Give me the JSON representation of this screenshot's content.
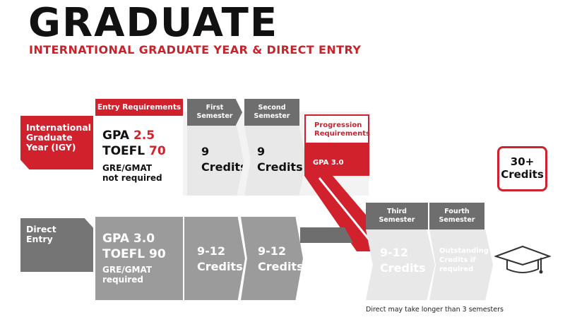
{
  "header": {
    "title": "GRADUATE",
    "subtitle": "INTERNATIONAL GRADUATE YEAR & DIRECT ENTRY"
  },
  "igy": {
    "label_lines": [
      "International",
      "Graduate",
      "Year (IGY)"
    ],
    "entry_requirements": {
      "heading": "Entry Requirements",
      "gpa_label": "GPA",
      "gpa_value": "2.5",
      "toefl_label": "TOEFL",
      "toefl_value": "70",
      "note_lines": [
        "GRE/GMAT",
        "not required"
      ]
    },
    "first_semester": {
      "heading_lines": [
        "First",
        "Semester"
      ],
      "credits_value": "9",
      "credits_label": "Credits"
    },
    "second_semester": {
      "heading_lines": [
        "Second",
        "Semester"
      ],
      "credits_value": "9",
      "credits_label": "Credits"
    },
    "progression": {
      "heading_lines": [
        "Progression",
        "Requirements"
      ],
      "value": "GPA 3.0"
    }
  },
  "direct_entry": {
    "label_lines": [
      "Direct",
      "Entry"
    ],
    "gpa": "GPA 3.0",
    "toefl": "TOEFL 90",
    "note_lines": [
      "GRE/GMAT",
      "required"
    ],
    "semester_credits": [
      {
        "value": "9-12",
        "label": "Credits"
      },
      {
        "value": "9-12",
        "label": "Credits"
      }
    ]
  },
  "later_semesters": {
    "third": {
      "heading_lines": [
        "Third",
        "Semester"
      ],
      "credits_value": "9-12",
      "credits_label": "Credits"
    },
    "fourth": {
      "heading_lines": [
        "Fourth",
        "Semester"
      ],
      "note_lines": [
        "Outstanding",
        "Credits if",
        "required"
      ]
    }
  },
  "total": {
    "lines": [
      "30+",
      "Credits"
    ]
  },
  "footnote": "Direct may take longer than 3 semesters",
  "icons": {
    "graduation": "graduation-cap-icon"
  },
  "colors": {
    "red": "#d0212d",
    "dark_gray": "#6e6e6e",
    "mid_gray": "#9b9b9b",
    "light_gray": "#e8e8e8"
  }
}
